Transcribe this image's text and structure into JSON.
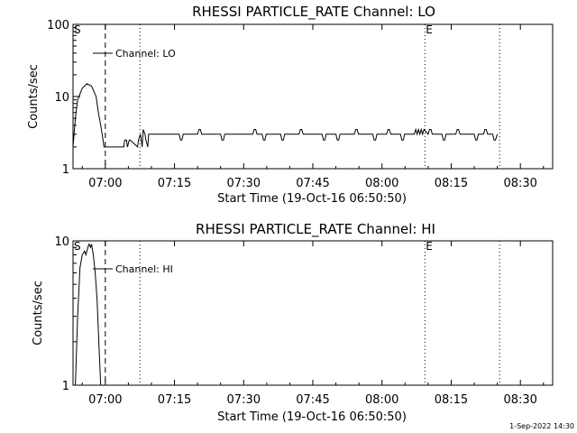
{
  "footer": "1-Sep-2022 14:30",
  "chart_data": [
    {
      "type": "line",
      "title": "RHESSI PARTICLE_RATE Channel: LO",
      "xlabel": "Start Time (19-Oct-16 06:50:50)",
      "ylabel": "Counts/sec",
      "yscale": "log",
      "ylim": [
        1,
        100
      ],
      "xlim_minutes": [
        -7,
        97
      ],
      "x_tick_labels": [
        "07:00",
        "07:15",
        "07:30",
        "07:45",
        "08:00",
        "08:15",
        "08:30"
      ],
      "x_tick_minutes": [
        0,
        15,
        30,
        45,
        60,
        75,
        90
      ],
      "y_tick_labels": [
        "1",
        "10",
        "100"
      ],
      "y_tick_values": [
        1,
        10,
        100
      ],
      "legend": "Channel: LO",
      "markers": [
        {
          "label": "S",
          "minute": -7
        },
        {
          "label": "E",
          "minute": 69.3
        }
      ],
      "vlines": [
        {
          "minute": 0,
          "style": "dashed"
        },
        {
          "minute": 7.5,
          "style": "dotted"
        },
        {
          "minute": 69.3,
          "style": "dotted"
        },
        {
          "minute": 85.5,
          "style": "dotted"
        }
      ],
      "series": [
        {
          "name": "Channel: LO",
          "x": [
            -7,
            -6.5,
            -6,
            -5,
            -4,
            -3,
            -2,
            -1.5,
            -1,
            -0.5,
            -0.3,
            0,
            1,
            2,
            3,
            4,
            4.2,
            4.6,
            4.8,
            5.2,
            5.4,
            7,
            7.2,
            7.6,
            7.8,
            8,
            8.2,
            8.6,
            8.8,
            9.2,
            9.4,
            9.6,
            10,
            16,
            16.3,
            16.6,
            16.9,
            20,
            20.3,
            20.6,
            20.9,
            25,
            25.3,
            25.6,
            25.9,
            32,
            32.3,
            32.6,
            32.9,
            34,
            34.3,
            34.6,
            34.9,
            38,
            38.3,
            38.6,
            38.9,
            42,
            42.3,
            42.6,
            42.9,
            47,
            47.3,
            47.6,
            47.9,
            50,
            50.3,
            50.6,
            50.9,
            54,
            54.3,
            54.6,
            54.9,
            58,
            58.3,
            58.6,
            58.9,
            61,
            61.3,
            61.6,
            61.9,
            64,
            64.3,
            64.6,
            64.9,
            67,
            67.3,
            67.6,
            67.9,
            68.2,
            68.5,
            68.8,
            69.1,
            70,
            70.3,
            70.6,
            70.9,
            73,
            73.3,
            73.6,
            73.9,
            76,
            76.3,
            76.6,
            76.9,
            80,
            80.3,
            80.6,
            80.9,
            82,
            82.3,
            82.6,
            82.9,
            84,
            84.3,
            84.6,
            85
          ],
          "values": [
            2,
            5,
            9,
            13,
            15,
            14,
            10,
            6,
            4,
            2.5,
            2,
            2,
            2,
            2,
            2,
            2,
            2.5,
            2.5,
            2,
            2.5,
            2.5,
            2,
            2.5,
            3,
            2.5,
            2,
            3.5,
            3,
            2.5,
            2,
            3,
            3,
            3,
            3,
            2.5,
            2.5,
            3,
            3,
            3.5,
            3.5,
            3,
            3,
            2.5,
            2.5,
            3,
            3,
            3.5,
            3.5,
            3,
            3,
            2.5,
            2.5,
            3,
            3,
            2.5,
            2.5,
            3,
            3,
            3.5,
            3.5,
            3,
            3,
            2.5,
            2.5,
            3,
            3,
            2.5,
            2.5,
            3,
            3,
            3.5,
            3.5,
            3,
            3,
            2.5,
            2.5,
            3,
            3,
            3.5,
            3.5,
            3,
            3,
            2.5,
            2.5,
            3,
            3,
            3.5,
            3,
            3.5,
            3,
            3.5,
            3,
            3.5,
            3,
            3.5,
            3.5,
            3,
            3,
            2.5,
            2.5,
            3,
            3,
            3.5,
            3.5,
            3,
            3,
            2.5,
            2.5,
            3,
            3,
            3.5,
            3.5,
            3,
            3,
            2.5,
            2.5,
            3
          ]
        }
      ]
    },
    {
      "type": "line",
      "title": "RHESSI PARTICLE_RATE Channel: HI",
      "xlabel": "Start Time (19-Oct-16 06:50:50)",
      "ylabel": "Counts/sec",
      "yscale": "log",
      "ylim": [
        1,
        10
      ],
      "xlim_minutes": [
        -7,
        97
      ],
      "x_tick_labels": [
        "07:00",
        "07:15",
        "07:30",
        "07:45",
        "08:00",
        "08:15",
        "08:30"
      ],
      "x_tick_minutes": [
        0,
        15,
        30,
        45,
        60,
        75,
        90
      ],
      "y_tick_labels": [
        "1",
        "10"
      ],
      "y_tick_values": [
        1,
        10
      ],
      "legend": "Channel: HI",
      "markers": [
        {
          "label": "S",
          "minute": -7
        },
        {
          "label": "E",
          "minute": 69.3
        }
      ],
      "vlines": [
        {
          "minute": 0,
          "style": "dashed"
        },
        {
          "minute": 7.5,
          "style": "dotted"
        },
        {
          "minute": 69.3,
          "style": "dotted"
        },
        {
          "minute": 85.5,
          "style": "dotted"
        }
      ],
      "series": [
        {
          "name": "Channel: HI",
          "x": [
            -6.5,
            -6,
            -5.5,
            -5,
            -4.5,
            -4.2,
            -3.8,
            -3.5,
            -3.2,
            -3,
            -2.6,
            -2.2,
            -1.8,
            -1.4,
            -1
          ],
          "values": [
            1,
            3,
            6.5,
            8,
            8.5,
            8,
            9,
            9.5,
            9,
            9.5,
            8,
            6,
            4,
            2,
            1
          ]
        }
      ]
    }
  ]
}
